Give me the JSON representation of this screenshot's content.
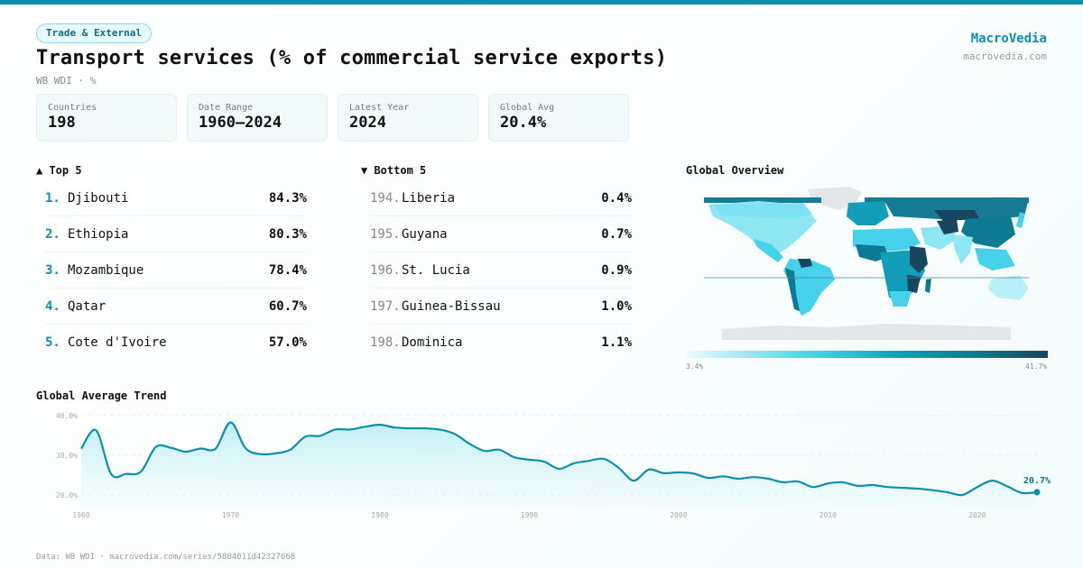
{
  "header": {
    "category_badge": "Trade & External",
    "title": "Transport services (% of commercial service exports)",
    "subtitle": "WB WDI · %",
    "brand_name": "MacroVedia",
    "brand_url": "macrovedia.com"
  },
  "stats": [
    {
      "label": "Countries",
      "value": "198"
    },
    {
      "label": "Date Range",
      "value": "1960–2024"
    },
    {
      "label": "Latest Year",
      "value": "2024"
    },
    {
      "label": "Global Avg",
      "value": "20.4%"
    }
  ],
  "top5": {
    "heading": "▲ Top 5",
    "items": [
      {
        "rank": "1.",
        "name": "Djibouti",
        "value": "84.3%"
      },
      {
        "rank": "2.",
        "name": "Ethiopia",
        "value": "80.3%"
      },
      {
        "rank": "3.",
        "name": "Mozambique",
        "value": "78.4%"
      },
      {
        "rank": "4.",
        "name": "Qatar",
        "value": "60.7%"
      },
      {
        "rank": "5.",
        "name": "Cote d'Ivoire",
        "value": "57.0%"
      }
    ]
  },
  "bottom5": {
    "heading": "▼ Bottom 5",
    "items": [
      {
        "rank": "194.",
        "name": "Liberia",
        "value": "0.4%"
      },
      {
        "rank": "195.",
        "name": "Guyana",
        "value": "0.7%"
      },
      {
        "rank": "196.",
        "name": "St. Lucia",
        "value": "0.9%"
      },
      {
        "rank": "197.",
        "name": "Guinea-Bissau",
        "value": "1.0%"
      },
      {
        "rank": "198.",
        "name": "Dominica",
        "value": "1.1%"
      }
    ]
  },
  "map": {
    "title": "Global Overview",
    "legend_min": "3.4%",
    "legend_max": "41.7%",
    "colors": {
      "low": "#effbfd",
      "mid": "#45d2ea",
      "high": "#17465e",
      "no_data": "#e4e7ea"
    }
  },
  "trend": {
    "title": "Global Average Trend"
  },
  "chart_data": {
    "type": "area",
    "title": "Global Average Trend",
    "xlabel": "",
    "ylabel": "",
    "x": [
      1960,
      1961,
      1962,
      1963,
      1964,
      1965,
      1966,
      1967,
      1968,
      1969,
      1970,
      1971,
      1972,
      1973,
      1974,
      1975,
      1976,
      1977,
      1978,
      1979,
      1980,
      1981,
      1982,
      1983,
      1984,
      1985,
      1986,
      1987,
      1988,
      1989,
      1990,
      1991,
      1992,
      1993,
      1994,
      1995,
      1996,
      1997,
      1998,
      1999,
      2000,
      2001,
      2002,
      2003,
      2004,
      2005,
      2006,
      2007,
      2008,
      2009,
      2010,
      2011,
      2012,
      2013,
      2014,
      2015,
      2016,
      2017,
      2018,
      2019,
      2020,
      2021,
      2022,
      2023,
      2024
    ],
    "values": [
      31.7,
      36.3,
      25.3,
      25.3,
      25.9,
      32.1,
      31.9,
      30.9,
      31.7,
      31.7,
      38.3,
      31.8,
      30.3,
      30.5,
      31.4,
      34.7,
      34.9,
      36.5,
      36.5,
      37.2,
      37.7,
      37.0,
      36.8,
      36.8,
      36.5,
      35.4,
      32.9,
      31.1,
      31.4,
      29.5,
      28.9,
      28.4,
      26.6,
      28.0,
      28.6,
      29.1,
      26.8,
      23.6,
      26.4,
      25.5,
      25.7,
      25.4,
      24.3,
      24.7,
      24.1,
      24.5,
      24.1,
      23.2,
      23.4,
      22.0,
      22.9,
      23.2,
      22.3,
      22.5,
      22.0,
      21.8,
      21.6,
      21.2,
      20.7,
      20.0,
      22.0,
      23.6,
      22.2,
      20.5,
      20.7
    ],
    "ylim": [
      17,
      40
    ],
    "yticks": [
      20,
      30,
      40
    ],
    "ytick_labels": [
      "20.0%",
      "30.0%",
      "40.0%"
    ],
    "xticks": [
      1960,
      1970,
      1980,
      1990,
      2000,
      2010,
      2020
    ],
    "xtick_labels": [
      "1960",
      "1970",
      "1980",
      "1990",
      "2000",
      "2010",
      "2020"
    ],
    "last_label": "20.7%",
    "grid": true,
    "line_color": "#0a8fae"
  },
  "footer": {
    "source": "Data: WB WDI · macrovedia.com/series/5804011d42327668"
  }
}
